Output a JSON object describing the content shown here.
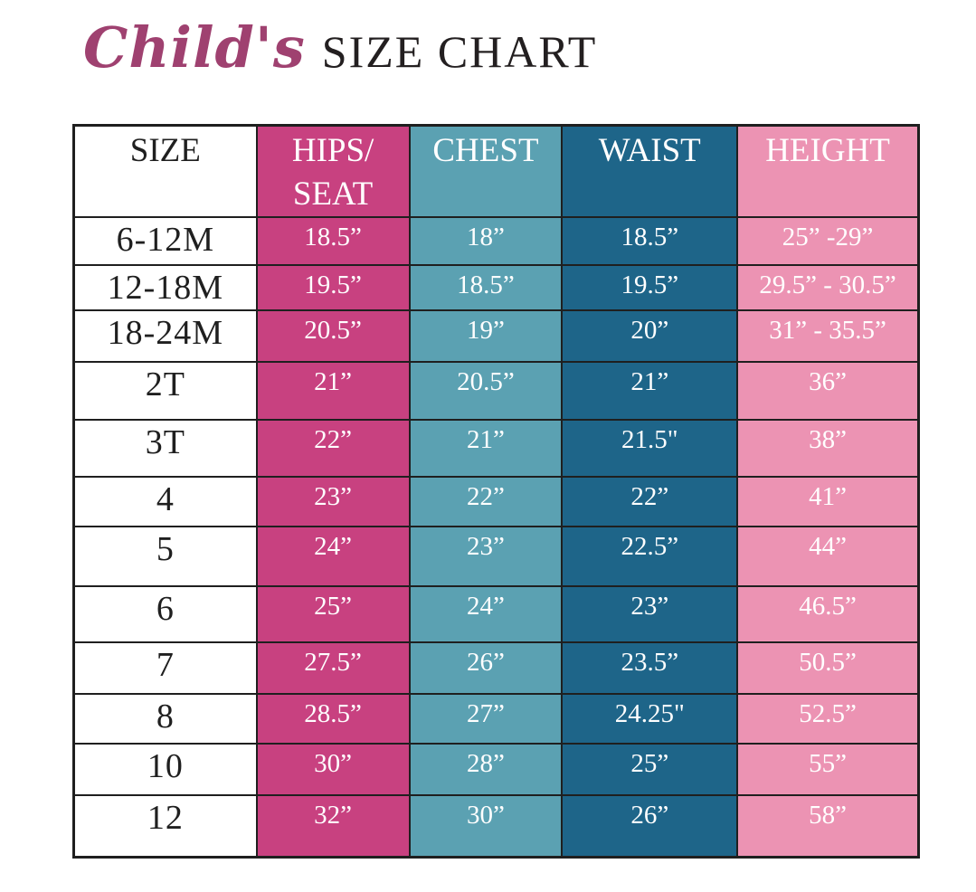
{
  "title": {
    "script": "Child's",
    "main": "SIZE CHART"
  },
  "colors": {
    "title_script": "#9f4170",
    "title_main": "#231f20",
    "border": "#1f1f1f",
    "hips_seat_magenta": "#c84180",
    "chest_teal": "#5ba1b2",
    "waist_blue": "#1e6589",
    "height_pink": "#ec93b3",
    "size_col_white": "#ffffff",
    "text_dark": "#1f1f1f",
    "text_light": "#ffffff"
  },
  "chart_data": {
    "type": "table",
    "title": "Child's SIZE CHART",
    "columns": [
      "SIZE",
      "HIPS/SEAT",
      "CHEST",
      "WAIST",
      "HEIGHT"
    ],
    "header_lines": [
      [
        "SIZE"
      ],
      [
        "HIPS/",
        "SEAT"
      ],
      [
        "CHEST"
      ],
      [
        "WAIST"
      ],
      [
        "HEIGHT"
      ]
    ],
    "column_keys": [
      "size",
      "hips-seat",
      "chest",
      "waist",
      "height"
    ],
    "column_bg": [
      "#ffffff",
      "#c84180",
      "#5ba1b2",
      "#1e6589",
      "#ec93b3"
    ],
    "column_text": [
      "#1f1f1f",
      "#ffffff",
      "#ffffff",
      "#ffffff",
      "#ffffff"
    ],
    "rows": [
      [
        "6-12M",
        "18.5”",
        "18”",
        "18.5”",
        "25” -29”"
      ],
      [
        "12-18M",
        "19.5”",
        "18.5”",
        "19.5”",
        "29.5” - 30.5”"
      ],
      [
        "18-24M",
        "20.5”",
        "19”",
        "20”",
        "31” - 35.5”"
      ],
      [
        "2T",
        "21”",
        "20.5”",
        "21”",
        "36”"
      ],
      [
        "3T",
        "22”",
        "21”",
        "21.5\"",
        "38”"
      ],
      [
        "4",
        "23”",
        "22”",
        "22”",
        "41”"
      ],
      [
        "5",
        "24”",
        "23”",
        "22.5”",
        "44”"
      ],
      [
        "6",
        "25”",
        "24”",
        "23”",
        "46.5”"
      ],
      [
        "7",
        "27.5”",
        "26”",
        "23.5”",
        "50.5”"
      ],
      [
        "8",
        "28.5”",
        "27”",
        "24.25\"",
        "52.5”"
      ],
      [
        "10",
        "30”",
        "28”",
        "25”",
        "55”"
      ],
      [
        "12",
        "32”",
        "30”",
        "26”",
        "58”"
      ]
    ]
  }
}
